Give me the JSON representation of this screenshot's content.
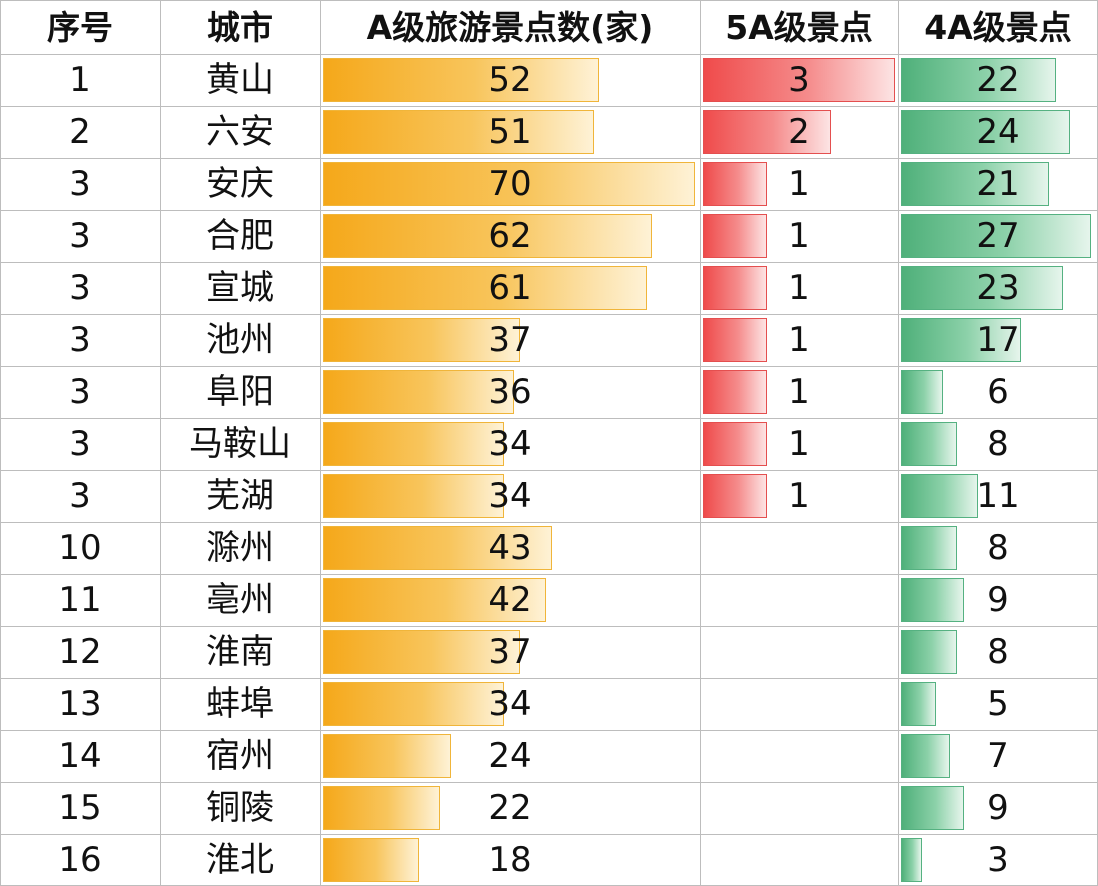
{
  "chart_data": {
    "type": "table",
    "columns": [
      "序号",
      "城市",
      "A级旅游景点数(家)",
      "5A级景点",
      "4A级景点"
    ],
    "rows": [
      {
        "rank": "1",
        "city": "黄山",
        "a_total": 52,
        "a5": 3,
        "a4": 22
      },
      {
        "rank": "2",
        "city": "六安",
        "a_total": 51,
        "a5": 2,
        "a4": 24
      },
      {
        "rank": "3",
        "city": "安庆",
        "a_total": 70,
        "a5": 1,
        "a4": 21
      },
      {
        "rank": "3",
        "city": "合肥",
        "a_total": 62,
        "a5": 1,
        "a4": 27
      },
      {
        "rank": "3",
        "city": "宣城",
        "a_total": 61,
        "a5": 1,
        "a4": 23
      },
      {
        "rank": "3",
        "city": "池州",
        "a_total": 37,
        "a5": 1,
        "a4": 17
      },
      {
        "rank": "3",
        "city": "阜阳",
        "a_total": 36,
        "a5": 1,
        "a4": 6
      },
      {
        "rank": "3",
        "city": "马鞍山",
        "a_total": 34,
        "a5": 1,
        "a4": 8
      },
      {
        "rank": "3",
        "city": "芜湖",
        "a_total": 34,
        "a5": 1,
        "a4": 11
      },
      {
        "rank": "10",
        "city": "滁州",
        "a_total": 43,
        "a5": null,
        "a4": 8
      },
      {
        "rank": "11",
        "city": "亳州",
        "a_total": 42,
        "a5": null,
        "a4": 9
      },
      {
        "rank": "12",
        "city": "淮南",
        "a_total": 37,
        "a5": null,
        "a4": 8
      },
      {
        "rank": "13",
        "city": "蚌埠",
        "a_total": 34,
        "a5": null,
        "a4": 5
      },
      {
        "rank": "14",
        "city": "宿州",
        "a_total": 24,
        "a5": null,
        "a4": 7
      },
      {
        "rank": "15",
        "city": "铜陵",
        "a_total": 22,
        "a5": null,
        "a4": 9
      },
      {
        "rank": "16",
        "city": "淮北",
        "a_total": 18,
        "a5": null,
        "a4": 3
      }
    ],
    "bar_colors": {
      "a_total": "#f5a81a",
      "a5": "#ef4b4b",
      "a4": "#4fb07a"
    },
    "bar_max": {
      "a_total": 70,
      "a5": 3,
      "a4": 27
    }
  }
}
